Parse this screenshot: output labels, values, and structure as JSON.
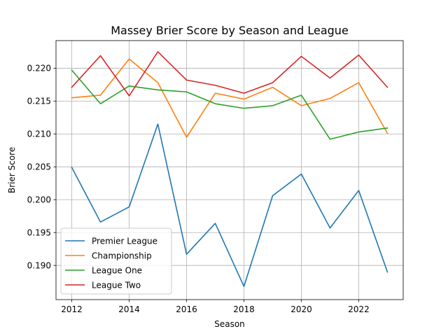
{
  "chart_data": {
    "type": "line",
    "title": "Massey Brier Score by Season and League",
    "xlabel": "Season",
    "ylabel": "Brier Score",
    "x": [
      2012,
      2013,
      2014,
      2015,
      2016,
      2017,
      2018,
      2019,
      2020,
      2021,
      2022,
      2023
    ],
    "xlim": [
      2011.45,
      2023.55
    ],
    "ylim": [
      0.1848,
      0.2242
    ],
    "x_ticks": [
      2012,
      2014,
      2016,
      2018,
      2020,
      2022
    ],
    "x_tick_labels": [
      "2012",
      "2014",
      "2016",
      "2018",
      "2020",
      "2022"
    ],
    "y_ticks": [
      0.19,
      0.195,
      0.2,
      0.205,
      0.21,
      0.215,
      0.22
    ],
    "y_tick_labels": [
      "0.190",
      "0.195",
      "0.200",
      "0.205",
      "0.210",
      "0.215",
      "0.220"
    ],
    "grid": true,
    "legend_position": "lower-left",
    "series": [
      {
        "name": "Premier League",
        "color": "#1f77b4",
        "values": [
          0.2049,
          0.1966,
          0.1989,
          0.2115,
          0.1917,
          0.1964,
          0.1868,
          0.2006,
          0.2039,
          0.1957,
          0.2014,
          0.189
        ]
      },
      {
        "name": "Championship",
        "color": "#ff7f0e",
        "values": [
          0.2155,
          0.2159,
          0.2214,
          0.2178,
          0.2095,
          0.2162,
          0.2153,
          0.2171,
          0.2143,
          0.2154,
          0.2178,
          0.2101
        ]
      },
      {
        "name": "League One",
        "color": "#2ca02c",
        "values": [
          0.2197,
          0.2146,
          0.2173,
          0.2167,
          0.2164,
          0.2146,
          0.2139,
          0.2143,
          0.2159,
          0.2092,
          0.2103,
          0.2109
        ]
      },
      {
        "name": "League Two",
        "color": "#d62728",
        "values": [
          0.2171,
          0.2219,
          0.2158,
          0.2225,
          0.2182,
          0.2174,
          0.2162,
          0.2178,
          0.2218,
          0.2185,
          0.222,
          0.2171
        ]
      }
    ]
  }
}
